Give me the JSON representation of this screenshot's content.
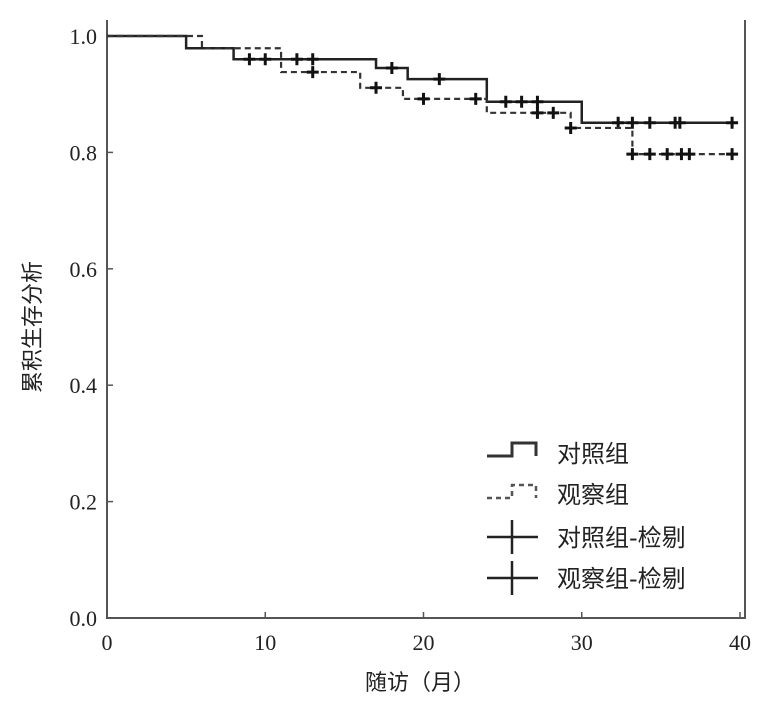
{
  "chart_data": {
    "type": "line",
    "subtype": "kaplan-meier",
    "title": "",
    "xlabel": "随访（月）",
    "ylabel": "累积生存分析",
    "xlim": [
      0,
      40
    ],
    "ylim": [
      0,
      1.0
    ],
    "xticks": [
      "0",
      "10",
      "20",
      "30",
      "40"
    ],
    "yticks": [
      "0.0",
      "0.2",
      "0.4",
      "0.6",
      "0.8",
      "1.0"
    ],
    "xtick_values": [
      0,
      10,
      20,
      30,
      40
    ],
    "ytick_values": [
      0,
      0.2,
      0.4,
      0.6,
      0.8,
      1.0
    ],
    "grid": false,
    "legend_position": "bottom-right",
    "series": [
      {
        "name": "对照组",
        "style": "solid",
        "steps": [
          [
            0,
            1.0
          ],
          [
            5,
            0.979
          ],
          [
            8,
            0.96
          ],
          [
            17,
            0.945
          ],
          [
            19,
            0.926
          ],
          [
            24,
            0.887
          ],
          [
            30,
            0.851
          ]
        ],
        "end": 39.5,
        "censor_name": "对照组-检剔",
        "censored": [
          9,
          10,
          12,
          13,
          18,
          21,
          25.2,
          26.2,
          27.2,
          32.3,
          33.2,
          34.3,
          35.9,
          36.2,
          39.5
        ]
      },
      {
        "name": "观察组",
        "style": "dashed",
        "steps": [
          [
            0,
            1.0
          ],
          [
            6,
            0.979
          ],
          [
            11,
            0.938
          ],
          [
            16,
            0.911
          ],
          [
            18.7,
            0.892
          ],
          [
            24,
            0.868
          ],
          [
            29.3,
            0.842
          ],
          [
            33.2,
            0.797
          ]
        ],
        "end": 39.5,
        "censor_name": "观察组-检剔",
        "censored": [
          13,
          17,
          20,
          23.3,
          27.2,
          28.2,
          29.3,
          33.2,
          34.3,
          35.4,
          36.3,
          36.8,
          39.5
        ]
      }
    ]
  }
}
